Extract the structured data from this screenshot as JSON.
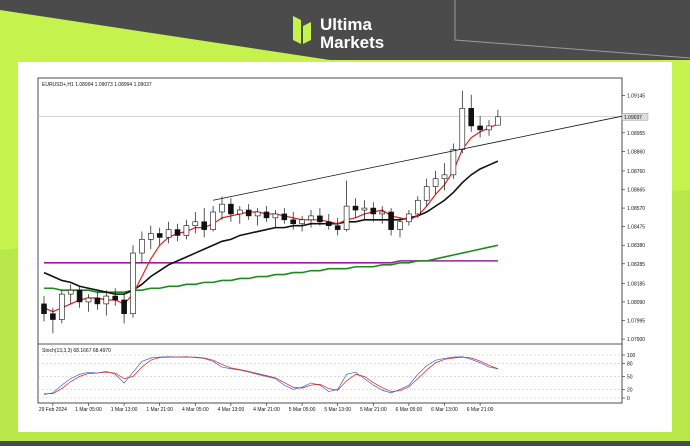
{
  "brand": {
    "line1": "Ultima",
    "line2": "Markets"
  },
  "chart_data": {
    "type": "candlestick",
    "title": "EURUSD+,H1  1.08994 1.09073 1.08994 1.09037",
    "indicator_title": "Stoch(13,3,3) 68.1667 68.4970",
    "categories": [
      null,
      "29 Feb 2024",
      null,
      null,
      null,
      "1 Mar 05:00",
      null,
      null,
      null,
      "1 Mar 13:00",
      null,
      null,
      null,
      "1 Mar 21:00",
      null,
      null,
      null,
      "4 Mar 05:00",
      null,
      null,
      null,
      "4 Mar 13:00",
      null,
      null,
      null,
      "4 Mar 21:00",
      null,
      null,
      null,
      "5 Mar 05:00",
      null,
      null,
      null,
      "5 Mar 13:00",
      null,
      null,
      null,
      "5 Mar 21:00",
      null,
      null,
      null,
      "6 Mar 05:00",
      null,
      null,
      null,
      "6 Mar 13:00",
      null,
      null,
      null,
      "6 Mar 21:00",
      null,
      null
    ],
    "open": [
      1.0808,
      1.0803,
      1.08,
      1.0813,
      1.0815,
      1.0809,
      1.0811,
      1.0808,
      1.0812,
      1.081,
      1.0803,
      1.0834,
      1.0841,
      1.0844,
      1.0842,
      1.0846,
      1.0843,
      1.0848,
      1.085,
      1.0846,
      1.0855,
      1.0859,
      1.0854,
      1.0856,
      1.0853,
      1.0855,
      1.0852,
      1.0854,
      1.0851,
      1.0849,
      1.0851,
      1.0853,
      1.085,
      1.0848,
      1.0846,
      1.0858,
      1.0856,
      1.0857,
      1.0854,
      1.0855,
      1.0846,
      1.085,
      1.0854,
      1.0861,
      1.0868,
      1.0872,
      1.0874,
      1.0887,
      1.0908,
      1.0899,
      1.0897,
      1.08994
    ],
    "high": [
      1.0812,
      1.0806,
      1.0815,
      1.0818,
      1.0817,
      1.0813,
      1.0814,
      1.0815,
      1.0816,
      1.0813,
      1.0838,
      1.0845,
      1.0848,
      1.0847,
      1.085,
      1.0849,
      1.0851,
      1.0855,
      1.0857,
      1.0858,
      1.0863,
      1.0862,
      1.0858,
      1.0859,
      1.0857,
      1.0858,
      1.0856,
      1.0857,
      1.0855,
      1.0853,
      1.0856,
      1.0857,
      1.0854,
      1.0852,
      1.0871,
      1.0862,
      1.0861,
      1.086,
      1.0858,
      1.0857,
      1.0852,
      1.0856,
      1.0863,
      1.0872,
      1.0876,
      1.088,
      1.089,
      1.0917,
      1.0915,
      1.0904,
      1.0902,
      1.09073
    ],
    "low": [
      1.0799,
      1.0793,
      1.0798,
      1.0808,
      1.0806,
      1.0804,
      1.0805,
      1.0802,
      1.0807,
      1.0798,
      1.0801,
      1.0829,
      1.0836,
      1.0838,
      1.0839,
      1.084,
      1.0841,
      1.0844,
      1.0842,
      1.0845,
      1.0851,
      1.085,
      1.0849,
      1.0851,
      1.0848,
      1.085,
      1.0847,
      1.0849,
      1.0846,
      1.0845,
      1.0847,
      1.0848,
      1.0846,
      1.0843,
      1.0845,
      1.0852,
      1.0851,
      1.085,
      1.0849,
      1.0843,
      1.0842,
      1.0848,
      1.0852,
      1.0858,
      1.0864,
      1.0866,
      1.0872,
      1.0885,
      1.0896,
      1.0893,
      1.0894,
      1.08994
    ],
    "close": [
      1.0803,
      1.08,
      1.0813,
      1.0815,
      1.0809,
      1.0811,
      1.0808,
      1.0812,
      1.081,
      1.0803,
      1.0834,
      1.0841,
      1.0844,
      1.0842,
      1.0846,
      1.0843,
      1.0848,
      1.085,
      1.0846,
      1.0855,
      1.0859,
      1.0854,
      1.0856,
      1.0853,
      1.0855,
      1.0852,
      1.0854,
      1.0851,
      1.0849,
      1.0851,
      1.0853,
      1.085,
      1.0848,
      1.0846,
      1.0858,
      1.0856,
      1.0857,
      1.0854,
      1.0855,
      1.0846,
      1.085,
      1.0854,
      1.0861,
      1.0868,
      1.0872,
      1.0874,
      1.0887,
      1.0908,
      1.0899,
      1.0897,
      1.0899,
      1.09037
    ],
    "series": [
      {
        "color": "#9b1fa0",
        "values": [
          1.0829,
          1.0829,
          1.0829,
          1.0829,
          1.0829,
          1.0829,
          1.0829,
          1.0829,
          1.0829,
          1.0829,
          1.0829,
          1.0829,
          1.0829,
          1.0829,
          1.0829,
          1.0829,
          1.0829,
          1.0829,
          1.0829,
          1.0829,
          1.0829,
          1.0829,
          1.0829,
          1.0829,
          1.0829,
          1.0829,
          1.0829,
          1.0829,
          1.0829,
          1.0829,
          1.0829,
          1.0829,
          1.0829,
          1.0829,
          1.0829,
          1.0829,
          1.0829,
          1.0829,
          1.0829,
          1.0829,
          1.083,
          1.083,
          1.083,
          1.083,
          1.083,
          1.083,
          1.083,
          1.083,
          1.083,
          1.083,
          1.083,
          1.083
        ]
      },
      {
        "color": "#1e8a1e",
        "values": [
          1.0816,
          1.0816,
          1.0815,
          1.0815,
          1.0815,
          1.0815,
          1.0814,
          1.0814,
          1.0814,
          1.0814,
          1.0815,
          1.0815,
          1.0816,
          1.0816,
          1.0817,
          1.0817,
          1.0818,
          1.0818,
          1.0819,
          1.0819,
          1.082,
          1.082,
          1.0821,
          1.0821,
          1.0822,
          1.0822,
          1.0823,
          1.0823,
          1.0824,
          1.0824,
          1.0825,
          1.0825,
          1.0826,
          1.0826,
          1.0826,
          1.0827,
          1.0827,
          1.0827,
          1.0828,
          1.0828,
          1.0829,
          1.0829,
          1.083,
          1.083,
          1.0831,
          1.0832,
          1.0833,
          1.0834,
          1.0835,
          1.0836,
          1.0837,
          1.0838
        ]
      },
      {
        "color": "#111111",
        "values": [
          1.0824,
          1.0822,
          1.082,
          1.0819,
          1.0817,
          1.0816,
          1.0815,
          1.0814,
          1.0813,
          1.0813,
          1.0815,
          1.0818,
          1.0822,
          1.0825,
          1.0828,
          1.083,
          1.0832,
          1.0834,
          1.0836,
          1.0838,
          1.084,
          1.0841,
          1.0843,
          1.0844,
          1.0845,
          1.0846,
          1.0847,
          1.0847,
          1.0848,
          1.0848,
          1.0849,
          1.0849,
          1.0849,
          1.0849,
          1.085,
          1.085,
          1.0851,
          1.0851,
          1.0851,
          1.0851,
          1.0851,
          1.0852,
          1.0853,
          1.0855,
          1.0858,
          1.0861,
          1.0865,
          1.087,
          1.0874,
          1.0877,
          1.0879,
          1.0881
        ]
      },
      {
        "color": "#e0201c",
        "values": [
          1.0806,
          1.0804,
          1.0806,
          1.0808,
          1.081,
          1.0811,
          1.0811,
          1.081,
          1.081,
          1.0808,
          1.0813,
          1.0822,
          1.0831,
          1.0838,
          1.0842,
          1.0844,
          1.0845,
          1.0847,
          1.0847,
          1.0849,
          1.0852,
          1.0853,
          1.0854,
          1.0855,
          1.0855,
          1.0854,
          1.0854,
          1.0853,
          1.0852,
          1.0851,
          1.0851,
          1.0851,
          1.085,
          1.0849,
          1.0851,
          1.0852,
          1.0854,
          1.0855,
          1.0856,
          1.0853,
          1.0852,
          1.0851,
          1.0853,
          1.0858,
          1.0864,
          1.0869,
          1.0876,
          1.0887,
          1.0893,
          1.0896,
          1.0898,
          1.09
        ]
      }
    ],
    "trendline": [
      1.0861,
      1.0904
    ],
    "last_price": 1.09037,
    "ylim": [
      1.0788,
      1.09225
    ],
    "yticks": [
      {
        "value": 1.09145,
        "label": "1.09145"
      },
      {
        "value": 1.08955,
        "label": "1.08955"
      },
      {
        "value": 1.0886,
        "label": "1.08860"
      },
      {
        "value": 1.0876,
        "label": "1.08760"
      },
      {
        "value": 1.08665,
        "label": "1.08665"
      },
      {
        "value": 1.0857,
        "label": "1.08570"
      },
      {
        "value": 1.08475,
        "label": "1.08475"
      },
      {
        "value": 1.0838,
        "label": "1.08380"
      },
      {
        "value": 1.08285,
        "label": "1.08285"
      },
      {
        "value": 1.08185,
        "label": "1.08185"
      },
      {
        "value": 1.0809,
        "label": "1.08090"
      },
      {
        "value": 1.07995,
        "label": "1.07995"
      },
      {
        "value": 1.079,
        "label": "1.07900"
      }
    ],
    "stoch": {
      "ylim": [
        0,
        100
      ],
      "yticks": [
        0,
        20,
        50,
        80,
        100
      ],
      "series": [
        {
          "color": "#3a5fd8",
          "values": [
            8,
            12,
            30,
            45,
            55,
            60,
            58,
            62,
            55,
            35,
            60,
            85,
            93,
            95,
            96,
            95,
            96,
            94,
            92,
            85,
            72,
            68,
            65,
            60,
            55,
            50,
            45,
            30,
            20,
            25,
            35,
            30,
            15,
            20,
            55,
            60,
            45,
            30,
            18,
            12,
            20,
            30,
            55,
            75,
            88,
            92,
            95,
            96,
            90,
            82,
            72,
            68
          ]
        },
        {
          "color": "#e0201c",
          "values": [
            10,
            10,
            22,
            38,
            50,
            57,
            58,
            60,
            58,
            45,
            50,
            72,
            88,
            94,
            95,
            95,
            95,
            95,
            93,
            88,
            78,
            70,
            66,
            62,
            57,
            52,
            47,
            36,
            25,
            23,
            30,
            32,
            22,
            18,
            40,
            55,
            50,
            36,
            24,
            15,
            17,
            26,
            45,
            65,
            82,
            90,
            93,
            95,
            93,
            86,
            76,
            68
          ]
        }
      ]
    }
  }
}
